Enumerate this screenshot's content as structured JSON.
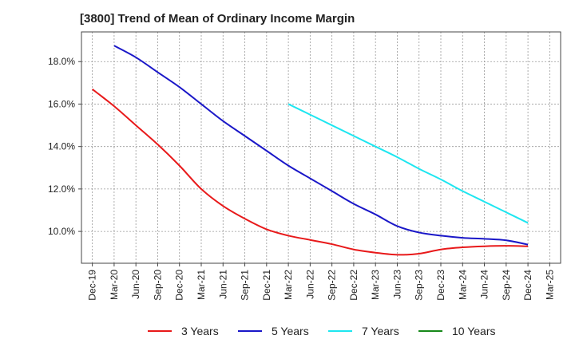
{
  "chart_data": {
    "type": "line",
    "title": "[3800]  Trend of Mean of Ordinary Income Margin",
    "xlabel": "",
    "ylabel": "",
    "grid": true,
    "legend_position": "bottom",
    "x_tick_labels": [
      "Dec-19",
      "Mar-20",
      "Jun-20",
      "Sep-20",
      "Dec-20",
      "Mar-21",
      "Jun-21",
      "Sep-21",
      "Dec-21",
      "Mar-22",
      "Jun-22",
      "Sep-22",
      "Dec-22",
      "Mar-23",
      "Jun-23",
      "Sep-23",
      "Dec-23",
      "Mar-24",
      "Jun-24",
      "Sep-24",
      "Dec-24",
      "Mar-25"
    ],
    "y_ticks": [
      10.0,
      12.0,
      14.0,
      16.0,
      18.0
    ],
    "y_tick_labels": [
      "10.0%",
      "12.0%",
      "14.0%",
      "16.0%",
      "18.0%"
    ],
    "ylim": [
      8.5,
      19.4
    ],
    "series": [
      {
        "name": "3 Years",
        "color": "#e8191a",
        "x": [
          "Dec-19",
          "Mar-20",
          "Jun-20",
          "Sep-20",
          "Dec-20",
          "Mar-21",
          "Jun-21",
          "Sep-21",
          "Dec-21",
          "Mar-22",
          "Jun-22",
          "Sep-22",
          "Dec-22",
          "Mar-23",
          "Jun-23",
          "Sep-23",
          "Dec-23",
          "Mar-24",
          "Jun-24",
          "Sep-24",
          "Dec-24"
        ],
        "values": [
          16.7,
          15.9,
          15.0,
          14.1,
          13.1,
          12.0,
          11.2,
          10.6,
          10.1,
          9.8,
          9.6,
          9.4,
          9.15,
          9.0,
          8.9,
          8.95,
          9.15,
          9.25,
          9.3,
          9.32,
          9.3
        ]
      },
      {
        "name": "5 Years",
        "color": "#1a17c8",
        "x": [
          "Mar-20",
          "Jun-20",
          "Sep-20",
          "Dec-20",
          "Mar-21",
          "Jun-21",
          "Sep-21",
          "Dec-21",
          "Mar-22",
          "Jun-22",
          "Sep-22",
          "Dec-22",
          "Mar-23",
          "Jun-23",
          "Sep-23",
          "Dec-23",
          "Mar-24",
          "Jun-24",
          "Sep-24",
          "Dec-24"
        ],
        "values": [
          18.75,
          18.2,
          17.5,
          16.8,
          16.0,
          15.2,
          14.5,
          13.8,
          13.1,
          12.5,
          11.9,
          11.3,
          10.8,
          10.25,
          9.95,
          9.8,
          9.7,
          9.65,
          9.58,
          9.38
        ]
      },
      {
        "name": "7 Years",
        "color": "#1ee6f0",
        "x": [
          "Mar-22",
          "Jun-22",
          "Sep-22",
          "Dec-22",
          "Mar-23",
          "Jun-23",
          "Sep-23",
          "Dec-23",
          "Mar-24",
          "Jun-24",
          "Sep-24",
          "Dec-24"
        ],
        "values": [
          16.0,
          15.5,
          15.0,
          14.5,
          14.0,
          13.5,
          12.95,
          12.45,
          11.9,
          11.4,
          10.9,
          10.4
        ]
      },
      {
        "name": "10 Years",
        "color": "#16881a",
        "x": [],
        "values": []
      }
    ]
  }
}
